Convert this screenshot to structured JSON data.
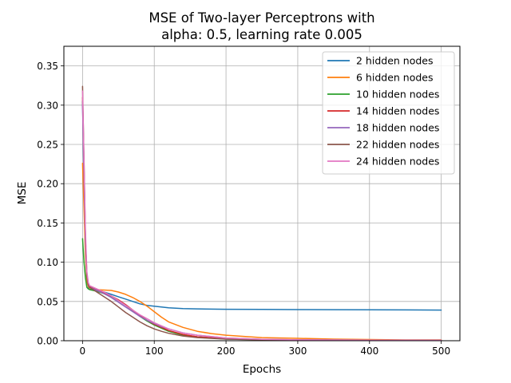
{
  "chart_data": {
    "type": "line",
    "title": "MSE of Two-layer Perceptrons with",
    "subtitle": "alpha: 0.5, learning rate 0.005",
    "xlabel": "Epochs",
    "ylabel": "MSE",
    "xlim": [
      -26,
      526
    ],
    "ylim": [
      0.0,
      0.375
    ],
    "xticks": [
      0,
      100,
      200,
      300,
      400,
      500
    ],
    "yticks": [
      0.0,
      0.05,
      0.1,
      0.15,
      0.2,
      0.25,
      0.3,
      0.35
    ],
    "xtick_labels": [
      "0",
      "100",
      "200",
      "300",
      "400",
      "500"
    ],
    "ytick_labels": [
      "0.00",
      "0.05",
      "0.10",
      "0.15",
      "0.20",
      "0.25",
      "0.30",
      "0.35"
    ],
    "grid": true,
    "legend_position": "top-right",
    "series": [
      {
        "name": "2 hidden nodes",
        "color": "#1f77b4",
        "x": [
          0,
          2,
          4,
          6,
          8,
          10,
          15,
          20,
          30,
          40,
          50,
          60,
          70,
          80,
          90,
          100,
          110,
          120,
          140,
          160,
          200,
          250,
          300,
          350,
          400,
          450,
          500
        ],
        "y": [
          0.305,
          0.2,
          0.12,
          0.08,
          0.068,
          0.066,
          0.065,
          0.064,
          0.062,
          0.059,
          0.056,
          0.053,
          0.05,
          0.047,
          0.045,
          0.044,
          0.043,
          0.042,
          0.041,
          0.0405,
          0.04,
          0.0398,
          0.0396,
          0.0395,
          0.0393,
          0.0392,
          0.039
        ]
      },
      {
        "name": "6 hidden nodes",
        "color": "#ff7f0e",
        "x": [
          0,
          2,
          4,
          6,
          8,
          10,
          15,
          20,
          30,
          40,
          50,
          60,
          70,
          80,
          90,
          100,
          110,
          120,
          140,
          160,
          180,
          200,
          250,
          300,
          350,
          400,
          450,
          500
        ],
        "y": [
          0.226,
          0.17,
          0.11,
          0.075,
          0.069,
          0.067,
          0.066,
          0.065,
          0.0645,
          0.064,
          0.062,
          0.059,
          0.055,
          0.05,
          0.044,
          0.037,
          0.03,
          0.024,
          0.017,
          0.012,
          0.009,
          0.007,
          0.004,
          0.003,
          0.002,
          0.0015,
          0.001,
          0.001
        ]
      },
      {
        "name": "10 hidden nodes",
        "color": "#2ca02c",
        "x": [
          0,
          2,
          4,
          6,
          8,
          10,
          15,
          20,
          30,
          40,
          50,
          60,
          70,
          80,
          90,
          100,
          110,
          120,
          140,
          160,
          200,
          250,
          300,
          400,
          500
        ],
        "y": [
          0.13,
          0.1,
          0.08,
          0.068,
          0.066,
          0.065,
          0.064,
          0.063,
          0.06,
          0.056,
          0.051,
          0.045,
          0.038,
          0.031,
          0.025,
          0.02,
          0.016,
          0.012,
          0.007,
          0.005,
          0.002,
          0.0012,
          0.0008,
          0.0005,
          0.0003
        ]
      },
      {
        "name": "14 hidden nodes",
        "color": "#d62728",
        "x": [
          0,
          2,
          4,
          6,
          8,
          10,
          15,
          20,
          30,
          40,
          50,
          60,
          70,
          80,
          90,
          100,
          110,
          120,
          140,
          160,
          200,
          250,
          300,
          400,
          500
        ],
        "y": [
          0.31,
          0.22,
          0.13,
          0.085,
          0.072,
          0.069,
          0.067,
          0.065,
          0.061,
          0.057,
          0.052,
          0.046,
          0.039,
          0.032,
          0.026,
          0.021,
          0.017,
          0.013,
          0.008,
          0.005,
          0.0025,
          0.0014,
          0.0009,
          0.0006,
          0.0004
        ]
      },
      {
        "name": "18 hidden nodes",
        "color": "#9467bd",
        "x": [
          0,
          2,
          4,
          6,
          8,
          10,
          15,
          20,
          30,
          40,
          50,
          60,
          70,
          80,
          90,
          100,
          110,
          120,
          140,
          160,
          200,
          250,
          300,
          400,
          500
        ],
        "y": [
          0.3,
          0.21,
          0.125,
          0.082,
          0.071,
          0.068,
          0.066,
          0.064,
          0.06,
          0.055,
          0.049,
          0.043,
          0.037,
          0.031,
          0.026,
          0.022,
          0.018,
          0.015,
          0.01,
          0.007,
          0.0035,
          0.0018,
          0.0011,
          0.0007,
          0.0005
        ]
      },
      {
        "name": "22 hidden nodes",
        "color": "#8c564b",
        "x": [
          0,
          2,
          4,
          6,
          8,
          10,
          15,
          20,
          30,
          40,
          50,
          60,
          70,
          80,
          90,
          100,
          110,
          120,
          140,
          160,
          200,
          250,
          300,
          400,
          500
        ],
        "y": [
          0.324,
          0.23,
          0.13,
          0.082,
          0.071,
          0.068,
          0.065,
          0.062,
          0.056,
          0.05,
          0.043,
          0.036,
          0.03,
          0.024,
          0.019,
          0.015,
          0.012,
          0.0095,
          0.006,
          0.004,
          0.002,
          0.0011,
          0.0007,
          0.0004,
          0.0003
        ]
      },
      {
        "name": "24 hidden nodes",
        "color": "#e377c2",
        "x": [
          0,
          2,
          4,
          6,
          8,
          10,
          15,
          20,
          30,
          40,
          50,
          60,
          70,
          80,
          90,
          100,
          110,
          120,
          140,
          160,
          200,
          250,
          300,
          400,
          500
        ],
        "y": [
          0.318,
          0.23,
          0.14,
          0.088,
          0.074,
          0.07,
          0.068,
          0.066,
          0.062,
          0.057,
          0.051,
          0.045,
          0.039,
          0.033,
          0.028,
          0.023,
          0.019,
          0.015,
          0.01,
          0.007,
          0.0035,
          0.0018,
          0.0011,
          0.0007,
          0.0005
        ]
      }
    ]
  }
}
